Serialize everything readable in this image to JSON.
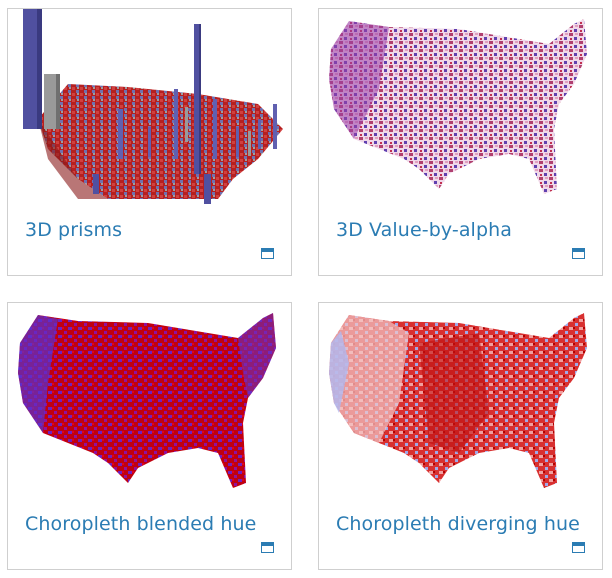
{
  "cards": [
    {
      "title": "3D prisms",
      "icon": "open-in-window-icon"
    },
    {
      "title": "3D Value-by-alpha",
      "icon": "open-in-window-icon"
    },
    {
      "title": "Choropleth blended hue",
      "icon": "open-in-window-icon"
    },
    {
      "title": "Choropleth diverging hue",
      "icon": "open-in-window-icon"
    }
  ],
  "colors": {
    "link": "#2b7cb3",
    "border": "#cfcfcf",
    "red": "#cc0000",
    "blue": "#4040d0",
    "purple": "#8030b0"
  }
}
